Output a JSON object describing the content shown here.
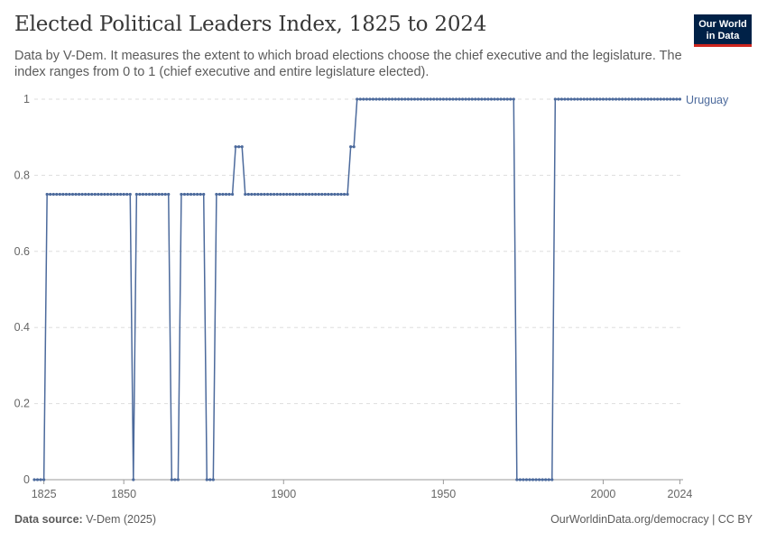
{
  "header": {
    "title": "Elected Political Leaders Index, 1825 to 2024",
    "subtitle": "Data by V-Dem. It measures the extent to which broad elections choose the chief executive and the legislature. The index ranges from 0 to 1 (chief executive and entire legislature elected).",
    "logo_line1": "Our World",
    "logo_line2": "in Data"
  },
  "footer": {
    "source_label": "Data source:",
    "source_value": "V-Dem (2025)",
    "link": "OurWorldinData.org/democracy | CC BY"
  },
  "colors": {
    "series": "#4c6a9c",
    "grid": "#dddddd",
    "axis": "#666666"
  },
  "chart_data": {
    "type": "line",
    "title": "Elected Political Leaders Index, 1825 to 2024",
    "xlabel": "",
    "ylabel": "",
    "xlim": [
      1822,
      2025
    ],
    "ylim": [
      0,
      1
    ],
    "x_ticks": [
      1825,
      1850,
      1900,
      1950,
      2000,
      2024
    ],
    "y_ticks": [
      0,
      0.2,
      0.4,
      0.6,
      0.8,
      1
    ],
    "y_tick_labels": [
      "0",
      "0.2",
      "0.4",
      "0.6",
      "0.8",
      "1"
    ],
    "series": [
      {
        "name": "Uruguay",
        "segments": [
          {
            "from": 1822,
            "to": 1825,
            "value": 0
          },
          {
            "from": 1826,
            "to": 1852,
            "value": 0.75
          },
          {
            "from": 1853,
            "to": 1853,
            "value": 0
          },
          {
            "from": 1854,
            "to": 1864,
            "value": 0.75
          },
          {
            "from": 1865,
            "to": 1867,
            "value": 0
          },
          {
            "from": 1868,
            "to": 1875,
            "value": 0.75
          },
          {
            "from": 1876,
            "to": 1878,
            "value": 0
          },
          {
            "from": 1879,
            "to": 1884,
            "value": 0.75
          },
          {
            "from": 1885,
            "to": 1887,
            "value": 0.875
          },
          {
            "from": 1888,
            "to": 1920,
            "value": 0.75
          },
          {
            "from": 1921,
            "to": 1922,
            "value": 0.875
          },
          {
            "from": 1923,
            "to": 1972,
            "value": 1
          },
          {
            "from": 1973,
            "to": 1984,
            "value": 0
          },
          {
            "from": 1985,
            "to": 2024,
            "value": 1
          }
        ]
      }
    ]
  }
}
